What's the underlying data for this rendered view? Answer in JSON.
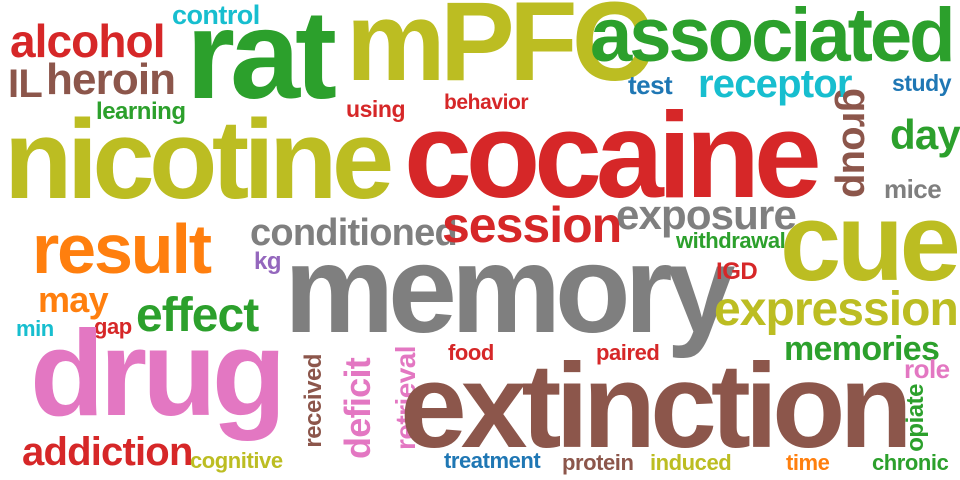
{
  "palette": {
    "red": "#d62728",
    "brown": "#8c564b",
    "olive": "#bcbd22",
    "green": "#2ca02c",
    "cyan": "#17becf",
    "gray": "#7f7f7f",
    "orange": "#ff7f0e",
    "pink": "#e377c2",
    "blue": "#1f77b4",
    "purple": "#9467bd"
  },
  "words": {
    "control": "control",
    "alcohol": "alcohol",
    "rat": "rat",
    "mpfc": "mPFC",
    "associated": "associated",
    "il": "IL",
    "heroin": "heroin",
    "test": "test",
    "receptor": "receptor",
    "study": "study",
    "learning": "learning",
    "using": "using",
    "behavior": "behavior",
    "group": "group",
    "day": "day",
    "nicotine": "nicotine",
    "cocaine": "cocaine",
    "mice": "mice",
    "exposure": "exposure",
    "result": "result",
    "conditioned": "conditioned",
    "session": "session",
    "withdrawal": "withdrawal",
    "cue": "cue",
    "kg": "kg",
    "memory": "memory",
    "igd": "IGD",
    "may": "may",
    "effect": "effect",
    "expression": "expression",
    "min": "min",
    "gap": "gap",
    "food": "food",
    "paired": "paired",
    "memories": "memories",
    "drug": "drug",
    "received": "received",
    "deficit": "deficit",
    "retrieval": "retrieval",
    "extinction": "extinction",
    "role": "role",
    "opiate": "opiate",
    "addiction": "addiction",
    "cognitive": "cognitive",
    "treatment": "treatment",
    "protein": "protein",
    "induced": "induced",
    "time": "time",
    "chronic": "chronic"
  }
}
